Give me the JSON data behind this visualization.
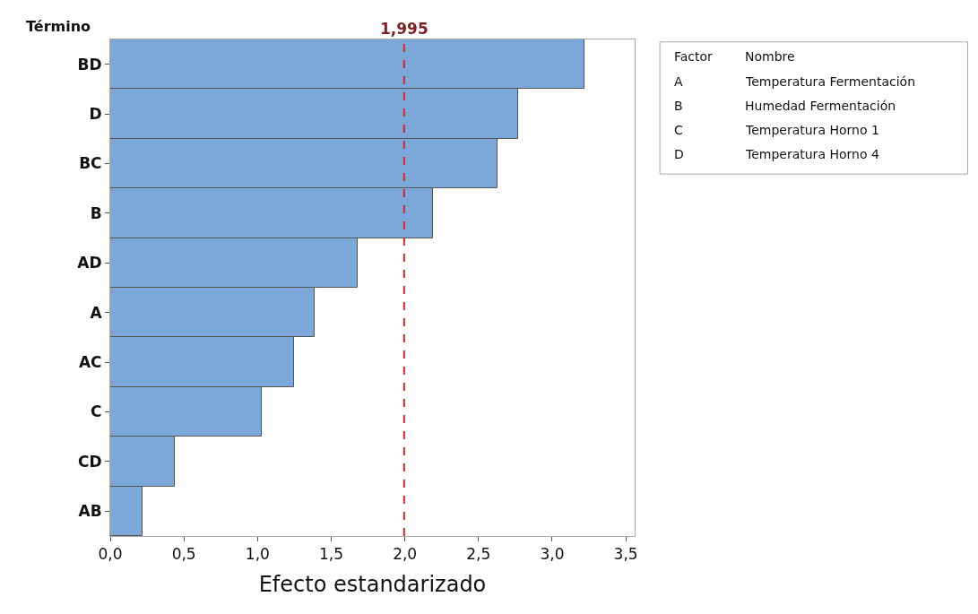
{
  "chart_data": {
    "type": "bar",
    "orientation": "horizontal",
    "ylabel": "Término",
    "xlabel": "Efecto estandarizado",
    "categories": [
      "BD",
      "D",
      "BC",
      "B",
      "AD",
      "A",
      "AC",
      "C",
      "CD",
      "AB"
    ],
    "values": [
      3.22,
      2.77,
      2.63,
      2.19,
      1.68,
      1.39,
      1.25,
      1.03,
      0.44,
      0.22
    ],
    "color": "#7ba7d9",
    "annotations": [
      "Factor",
      "Nombre",
      "A",
      "Temperatura Fermentación",
      "B",
      "Humedad Fermentación",
      "C",
      "Temperatura Horno 1",
      "D",
      "Temperatura Horno 4"
    ],
    "xlim": [
      0,
      3.56
    ],
    "xticks": [
      {
        "value": 0,
        "label": "0,0"
      },
      {
        "value": 0.5,
        "label": "0,5"
      },
      {
        "value": 1,
        "label": "1,0"
      },
      {
        "value": 1.5,
        "label": "1,5"
      },
      {
        "value": 2,
        "label": "2,0"
      },
      {
        "value": 2.5,
        "label": "2,5"
      },
      {
        "value": 3,
        "label": "3,0"
      },
      {
        "value": 3.5,
        "label": "3,5"
      }
    ],
    "ref_lines": [
      {
        "axis": "x",
        "value": 1.995,
        "label": "1,995",
        "color": "#d62728",
        "line_style": "dashed"
      }
    ]
  }
}
